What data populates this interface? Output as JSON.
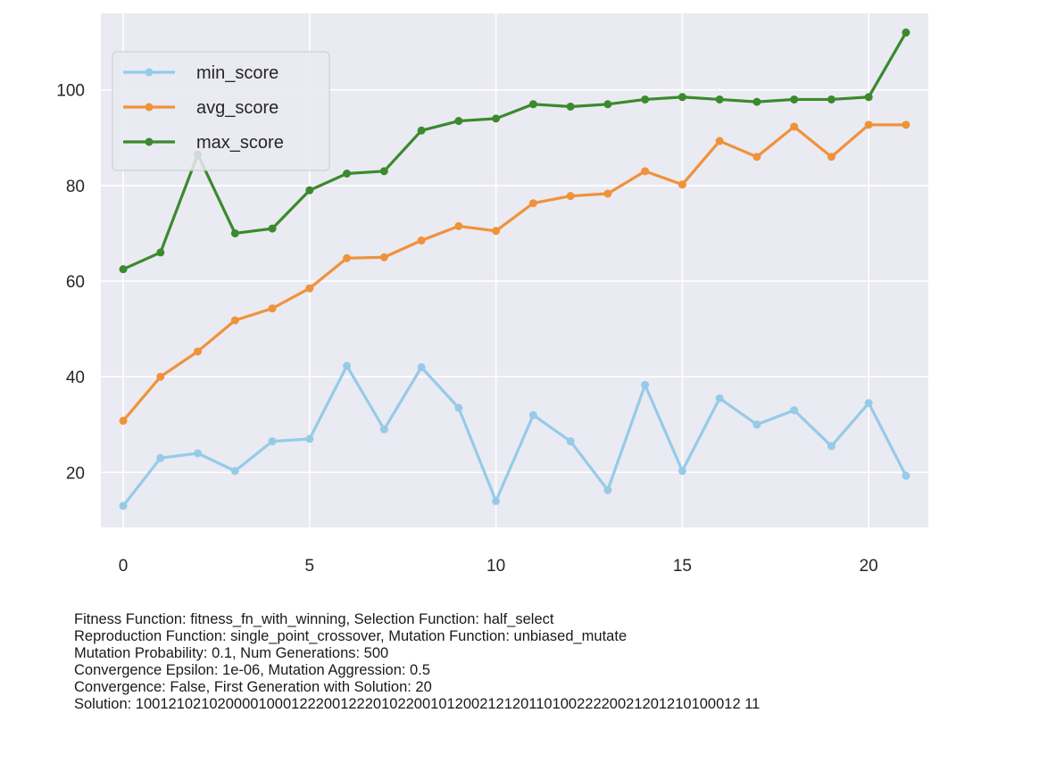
{
  "chart_data": {
    "type": "line",
    "title": "",
    "xlabel": "",
    "ylabel": "",
    "xlim": [
      -0.6,
      21.6
    ],
    "ylim": [
      8.5,
      116
    ],
    "xticks": [
      0,
      5,
      10,
      15,
      20
    ],
    "yticks": [
      20,
      40,
      60,
      80,
      100
    ],
    "grid": true,
    "legend_position": "upper-left",
    "x": [
      0,
      1,
      2,
      3,
      4,
      5,
      6,
      7,
      8,
      9,
      10,
      11,
      12,
      13,
      14,
      15,
      16,
      17,
      18,
      19,
      20,
      21
    ],
    "series": [
      {
        "name": "min_score",
        "color": "#95cbe8",
        "values": [
          13.0,
          23.0,
          24.0,
          20.3,
          26.5,
          27.0,
          42.3,
          29.0,
          42.0,
          33.5,
          14.0,
          32.0,
          26.5,
          16.3,
          38.3,
          20.3,
          35.5,
          30.0,
          33.0,
          25.5,
          34.5,
          19.3
        ]
      },
      {
        "name": "avg_score",
        "color": "#f0923a",
        "values": [
          30.8,
          40.0,
          45.3,
          51.8,
          54.3,
          58.5,
          64.8,
          65.0,
          68.5,
          71.5,
          70.5,
          76.3,
          77.8,
          78.3,
          83.0,
          80.2,
          89.3,
          86.0,
          92.3,
          86.0,
          92.7,
          92.7
        ]
      },
      {
        "name": "max_score",
        "color": "#3a8a2e",
        "values": [
          62.5,
          66.0,
          86.5,
          70.0,
          71.0,
          79.0,
          82.5,
          83.0,
          91.5,
          93.5,
          94.0,
          97.0,
          96.5,
          97.0,
          98.0,
          98.5,
          98.0,
          97.5,
          98.0,
          98.0,
          98.5,
          112.0
        ]
      }
    ]
  },
  "caption": [
    "Fitness Function: fitness_fn_with_winning, Selection Function: half_select",
    "Reproduction Function: single_point_crossover, Mutation Function: unbiased_mutate",
    "Mutation Probability: 0.1, Num Generations: 500",
    "Convergence Epsilon: 1e-06, Mutation Aggression: 0.5",
    "Convergence: False, First Generation with Solution: 20",
    "Solution: 10012102102000010001222001222010220010120021212011010022220021201210100012 11"
  ]
}
